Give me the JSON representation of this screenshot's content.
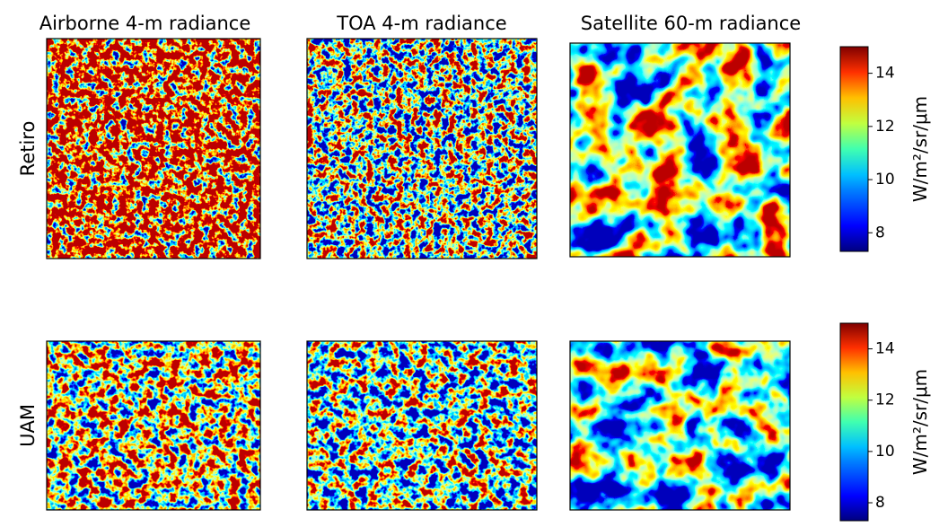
{
  "chart_data": {
    "type": "heatmap",
    "columns": [
      "Airborne 4-m radiance",
      "TOA 4-m radiance",
      "Satellite 60-m radiance"
    ],
    "rows": [
      "Retiro",
      "UAM"
    ],
    "colorbars": [
      {
        "label": "W/m²/sr/μm",
        "lim": [
          7.3,
          15
        ],
        "ticks": [
          8,
          10,
          12,
          14
        ]
      },
      {
        "label": "W/m²/sr/μm",
        "lim": [
          7.3,
          15
        ],
        "ticks": [
          8,
          10,
          12,
          14
        ]
      }
    ]
  }
}
